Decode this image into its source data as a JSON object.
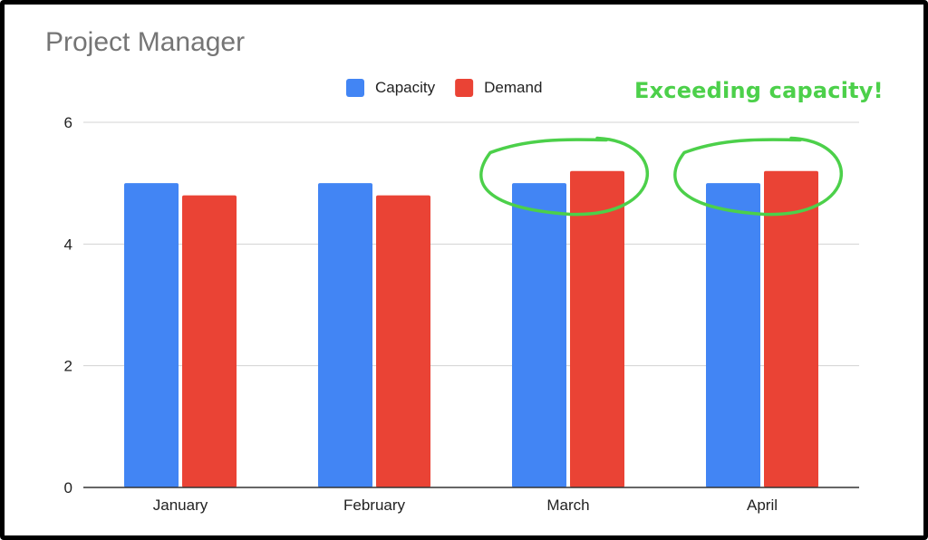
{
  "chart_data": {
    "type": "bar",
    "title": "Project Manager",
    "categories": [
      "January",
      "February",
      "March",
      "April"
    ],
    "series": [
      {
        "name": "Capacity",
        "color": "#4285f4",
        "values": [
          5,
          5,
          5,
          5
        ]
      },
      {
        "name": "Demand",
        "color": "#ea4335",
        "values": [
          4.8,
          4.8,
          5.2,
          5.2
        ]
      }
    ],
    "ylim": [
      0,
      6
    ],
    "yticks": [
      0,
      2,
      4,
      6
    ],
    "grid": true,
    "legend_position": "top",
    "annotation": {
      "text": "Exceeding capacity!",
      "color": "#4cd04a",
      "highlighted_categories": [
        "March",
        "April"
      ]
    }
  }
}
